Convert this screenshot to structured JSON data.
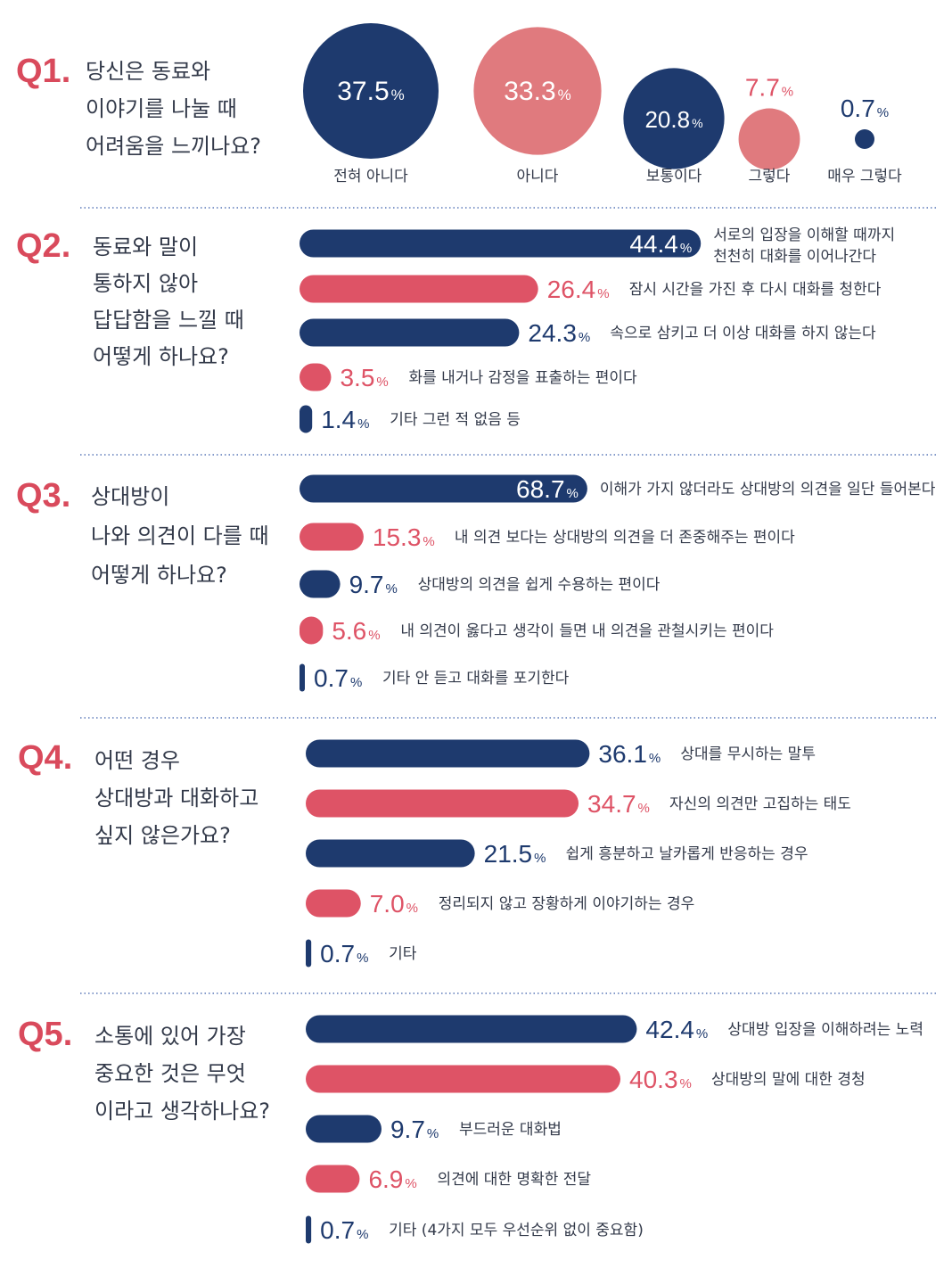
{
  "colors": {
    "navy": "#1e3a6e",
    "pink": "#e07a7e",
    "red": "#de5366",
    "divider": "#5a78b8",
    "text": "#333a4a"
  },
  "chart_data": [
    {
      "type": "bubble",
      "question_number": "Q1.",
      "question_lines": [
        "당신은 동료와",
        "이야기를 나눌 때",
        "어려움을 느끼나요?"
      ],
      "categories": [
        "전혀 아니다",
        "아니다",
        "보통이다",
        "그렇다",
        "매우 그렇다"
      ],
      "values": [
        37.5,
        33.3,
        20.8,
        7.7,
        0.7
      ],
      "value_labels": [
        "37.5",
        "33.3",
        "20.8",
        "7.7",
        "0.7"
      ],
      "unit": "%"
    },
    {
      "type": "bar",
      "question_number": "Q2.",
      "question_lines": [
        "동료와 말이",
        "통하지 않아",
        "답답함을 느낄 때",
        "어떻게 하나요?"
      ],
      "categories": [
        [
          "서로의 입장을 이해할 때까지",
          "천천히 대화를 이어나간다"
        ],
        [
          "잠시 시간을 가진 후 다시 대화를 청한다"
        ],
        [
          "속으로 삼키고 더 이상 대화를 하지 않는다"
        ],
        [
          "화를 내거나 감정을 표출하는 편이다"
        ],
        [
          "기타 그런 적 없음 등"
        ]
      ],
      "values": [
        44.4,
        26.4,
        24.3,
        3.5,
        1.4
      ],
      "value_labels": [
        "44.4",
        "26.4",
        "24.3",
        "3.5",
        "1.4"
      ],
      "unit": "%"
    },
    {
      "type": "bar",
      "question_number": "Q3.",
      "question_lines": [
        "상대방이",
        "나와 의견이 다를 때",
        "어떻게 하나요?"
      ],
      "categories": [
        [
          "이해가 가지 않더라도 상대방의 의견을 일단 들어본다"
        ],
        [
          "내 의견 보다는 상대방의 의견을 더 존중해주는 편이다"
        ],
        [
          "상대방의 의견을 쉽게 수용하는 편이다"
        ],
        [
          "내 의견이 옳다고 생각이 들면 내 의견을 관철시키는 편이다"
        ],
        [
          "기타  안 듣고 대화를 포기한다"
        ]
      ],
      "values": [
        68.7,
        15.3,
        9.7,
        5.6,
        0.7
      ],
      "value_labels": [
        "68.7",
        "15.3",
        "9.7",
        "5.6",
        "0.7"
      ],
      "unit": "%"
    },
    {
      "type": "bar",
      "question_number": "Q4.",
      "question_lines": [
        "어떤 경우",
        "상대방과 대화하고",
        "싶지 않은가요?"
      ],
      "categories": [
        [
          "상대를 무시하는 말투"
        ],
        [
          "자신의 의견만 고집하는 태도"
        ],
        [
          "쉽게 흥분하고 날카롭게 반응하는 경우"
        ],
        [
          "정리되지 않고 장황하게 이야기하는 경우"
        ],
        [
          "기타"
        ]
      ],
      "values": [
        36.1,
        34.7,
        21.5,
        7.0,
        0.7
      ],
      "value_labels": [
        "36.1",
        "34.7",
        "21.5",
        "7.0",
        "0.7"
      ],
      "unit": "%"
    },
    {
      "type": "bar",
      "question_number": "Q5.",
      "question_lines": [
        "소통에 있어 가장",
        "중요한 것은 무엇",
        "이라고 생각하나요?"
      ],
      "categories": [
        [
          "상대방 입장을 이해하려는 노력"
        ],
        [
          "상대방의 말에 대한 경청"
        ],
        [
          "부드러운 대화법"
        ],
        [
          "의견에 대한 명확한 전달"
        ],
        [
          "기타 (4가지 모두 우선순위 없이 중요함)"
        ]
      ],
      "values": [
        42.4,
        40.3,
        9.7,
        6.9,
        0.7
      ],
      "value_labels": [
        "42.4",
        "40.3",
        "9.7",
        "6.9",
        "0.7"
      ],
      "unit": "%"
    }
  ]
}
